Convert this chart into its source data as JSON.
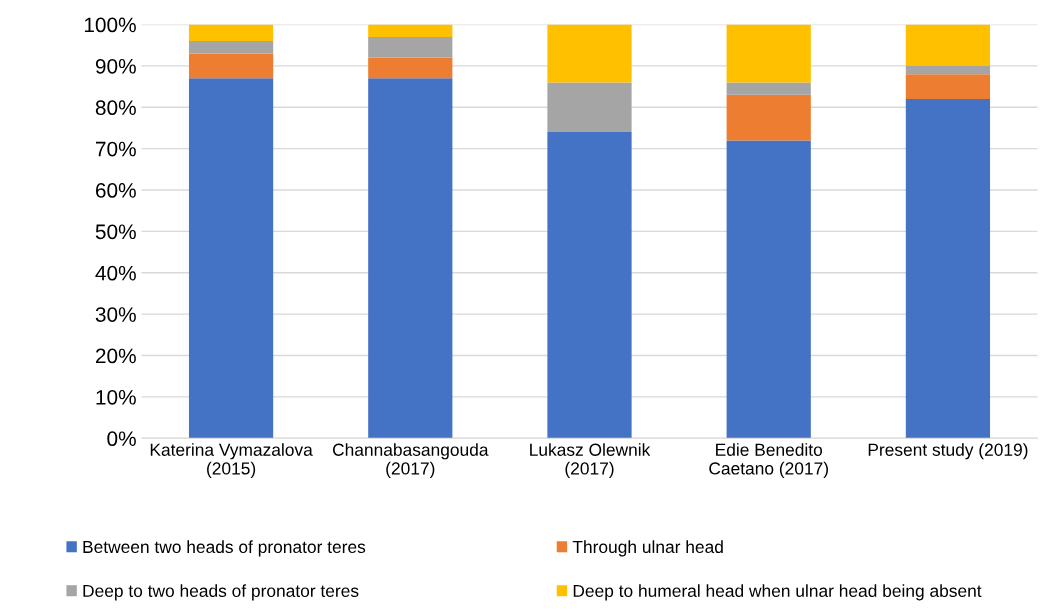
{
  "chart_data": {
    "type": "bar",
    "stacked": true,
    "categories": [
      "Katerina Vymazalova\n(2015)",
      "Channabasangouda\n(2017)",
      "Lukasz Olewnik\n(2017)",
      "Edie Benedito\nCaetano (2017)",
      "Present study (2019)"
    ],
    "series": [
      {
        "name": "Between two heads of pronator teres",
        "color": "#4472c4",
        "values": [
          87,
          87,
          74,
          72,
          82
        ]
      },
      {
        "name": "Through ulnar head",
        "color": "#ed7d31",
        "values": [
          6,
          5,
          0,
          11,
          6
        ]
      },
      {
        "name": "Deep to two heads of pronator teres",
        "color": "#a5a5a5",
        "values": [
          3,
          5,
          12,
          3,
          2
        ]
      },
      {
        "name": "Deep to humeral head when ulnar head being absent",
        "color": "#ffc000",
        "values": [
          4,
          3,
          14,
          14,
          10
        ]
      }
    ],
    "ylim": [
      0,
      100
    ],
    "yticks": [
      {
        "value": 0,
        "label": "0%"
      },
      {
        "value": 10,
        "label": "10%"
      },
      {
        "value": 20,
        "label": "20%"
      },
      {
        "value": 30,
        "label": "30%"
      },
      {
        "value": 40,
        "label": "40%"
      },
      {
        "value": 50,
        "label": "50%"
      },
      {
        "value": 60,
        "label": "60%"
      },
      {
        "value": 70,
        "label": "70%"
      },
      {
        "value": 80,
        "label": "80%"
      },
      {
        "value": 90,
        "label": "90%"
      },
      {
        "value": 100,
        "label": "100%"
      }
    ],
    "grid": "y",
    "legend": "bottom"
  }
}
